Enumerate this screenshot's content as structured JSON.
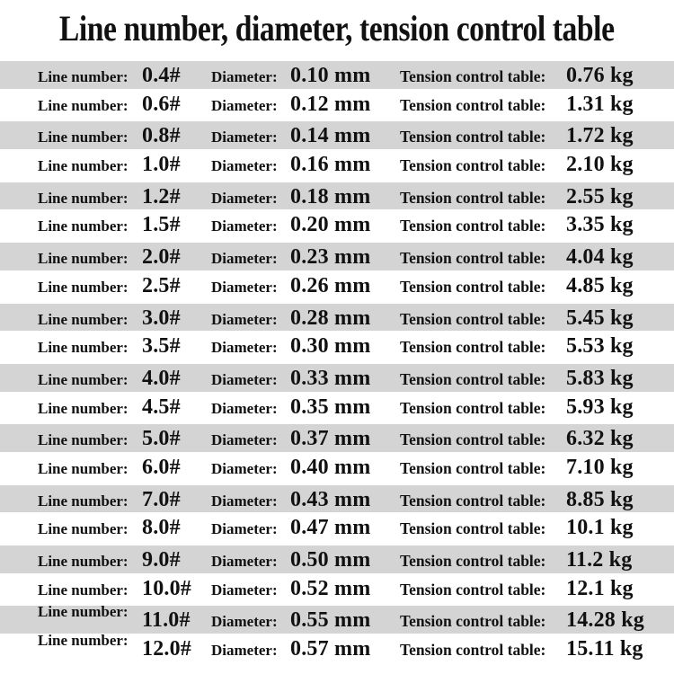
{
  "chart_data": {
    "type": "table",
    "title": "Line number, diameter, tension control table",
    "column_labels": {
      "line_number": "Line number:",
      "diameter": "Diameter:",
      "tension": "Tension control table:"
    },
    "units": {
      "diameter": "mm",
      "tension": "kg"
    },
    "rows": [
      {
        "line_number": "0.4#",
        "diameter": "0.10 mm",
        "tension": "0.76 kg"
      },
      {
        "line_number": "0.6#",
        "diameter": "0.12 mm",
        "tension": "1.31 kg"
      },
      {
        "line_number": "0.8#",
        "diameter": "0.14 mm",
        "tension": "1.72 kg"
      },
      {
        "line_number": "1.0#",
        "diameter": "0.16 mm",
        "tension": "2.10 kg"
      },
      {
        "line_number": "1.2#",
        "diameter": "0.18 mm",
        "tension": "2.55 kg"
      },
      {
        "line_number": "1.5#",
        "diameter": "0.20 mm",
        "tension": "3.35 kg"
      },
      {
        "line_number": "2.0#",
        "diameter": "0.23 mm",
        "tension": "4.04 kg"
      },
      {
        "line_number": "2.5#",
        "diameter": "0.26 mm",
        "tension": "4.85 kg"
      },
      {
        "line_number": "3.0#",
        "diameter": "0.28 mm",
        "tension": "5.45 kg"
      },
      {
        "line_number": "3.5#",
        "diameter": "0.30 mm",
        "tension": "5.53 kg"
      },
      {
        "line_number": "4.0#",
        "diameter": "0.33 mm",
        "tension": "5.83 kg"
      },
      {
        "line_number": "4.5#",
        "diameter": "0.35 mm",
        "tension": "5.93 kg"
      },
      {
        "line_number": "5.0#",
        "diameter": "0.37 mm",
        "tension": "6.32 kg"
      },
      {
        "line_number": "6.0#",
        "diameter": "0.40 mm",
        "tension": "7.10 kg"
      },
      {
        "line_number": "7.0#",
        "diameter": "0.43 mm",
        "tension": "8.85 kg"
      },
      {
        "line_number": "8.0#",
        "diameter": "0.47 mm",
        "tension": "10.1 kg"
      },
      {
        "line_number": "9.0#",
        "diameter": "0.50 mm",
        "tension": "11.2 kg"
      },
      {
        "line_number": "10.0#",
        "diameter": "0.52 mm",
        "tension": "12.1 kg"
      },
      {
        "line_number": "11.0#",
        "diameter": "0.55 mm",
        "tension": "14.28 kg"
      },
      {
        "line_number": "12.0#",
        "diameter": "0.57 mm",
        "tension": "15.11 kg"
      }
    ],
    "layout": {
      "striped": true,
      "first_row_striped": true,
      "stripe_color": "#d4d4d4",
      "background": "#ffffff",
      "text_color": "#111111",
      "legend_position": "none",
      "grid": false
    }
  }
}
